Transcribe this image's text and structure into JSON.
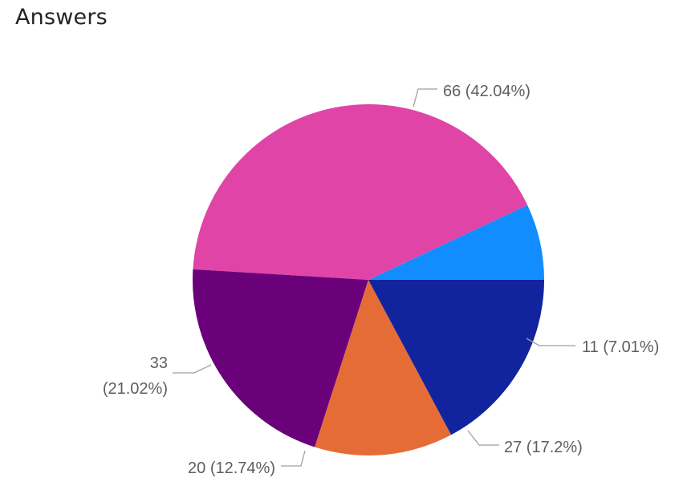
{
  "header": {
    "title": "Answers"
  },
  "chart_data": {
    "type": "pie",
    "title": "Answers",
    "legend": "none",
    "slices": [
      {
        "value": 11,
        "percent": "7.01%",
        "label": "11 (7.01%)",
        "color": "#118DFF"
      },
      {
        "value": 66,
        "percent": "42.04%",
        "label": "66 (42.04%)",
        "color": "#E044A7"
      },
      {
        "value": 33,
        "percent": "21.02%",
        "label_lines": [
          "33",
          "(21.02%)"
        ],
        "color": "#6B007B"
      },
      {
        "value": 20,
        "percent": "12.74%",
        "label": "20 (12.74%)",
        "color": "#E66C37"
      },
      {
        "value": 27,
        "percent": "17.2%",
        "label": "27 (17.2%)",
        "color": "#12239E"
      }
    ]
  }
}
